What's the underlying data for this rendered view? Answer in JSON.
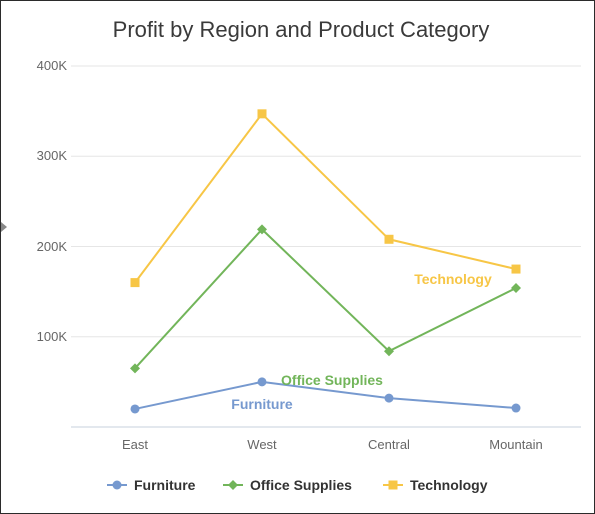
{
  "chart_data": {
    "type": "line",
    "title": "Profit by Region and Product Category",
    "categories": [
      "East",
      "West",
      "Central",
      "Mountain"
    ],
    "y_tick_labels": [
      "100K",
      "200K",
      "300K",
      "400K"
    ],
    "ylim": [
      0,
      400000
    ],
    "y_ticks": [
      100000,
      200000,
      300000,
      400000
    ],
    "grid": true,
    "legend_position": "bottom",
    "series": [
      {
        "name": "Furniture",
        "values": [
          20000,
          50000,
          32000,
          21000
        ],
        "color": "#7699cf",
        "marker": "circle"
      },
      {
        "name": "Office Supplies",
        "values": [
          65000,
          219000,
          84000,
          154000
        ],
        "color": "#72b55a",
        "marker": "diamond"
      },
      {
        "name": "Technology",
        "values": [
          160000,
          347000,
          208000,
          175000
        ],
        "color": "#f7c646",
        "marker": "square"
      }
    ]
  }
}
